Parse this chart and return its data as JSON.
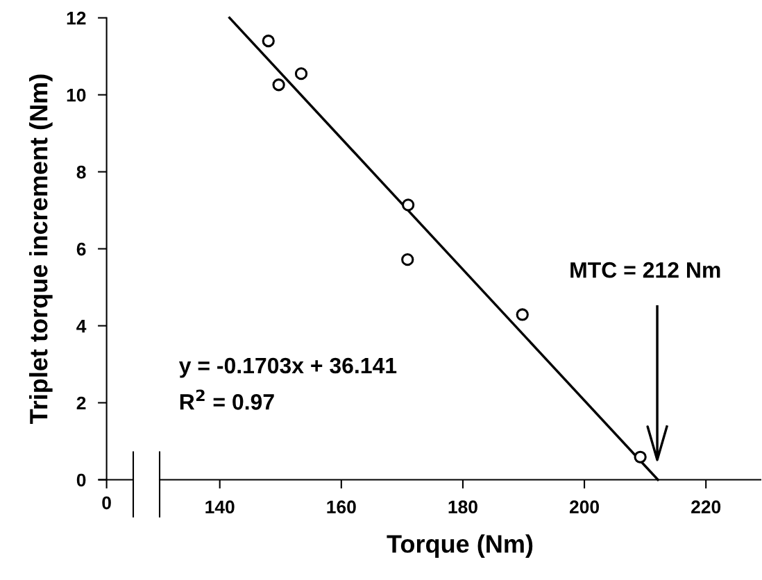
{
  "chart_data": {
    "type": "scatter",
    "xlabel": "Torque (Nm)",
    "ylabel": "Triplet torque increment (Nm)",
    "x": [
      148.0,
      149.7,
      153.4,
      171.0,
      170.9,
      189.8,
      209.2
    ],
    "series": [
      {
        "color": "#000000",
        "marker": "circle",
        "values": [
          11.4,
          10.26,
          10.55,
          7.14,
          5.72,
          4.29,
          0.59
        ]
      },
      {
        "type": "line",
        "color": "#000000",
        "marker": "none",
        "line_style": "solid",
        "x": [
          141.6,
          212.1
        ],
        "values": [
          12.0,
          0.0
        ]
      }
    ],
    "xlim": [
      130.1,
      229
    ],
    "xticks": [
      140,
      160,
      180,
      200,
      220
    ],
    "ylim": [
      0,
      12
    ],
    "yticks": [
      0,
      2,
      4,
      6,
      8,
      10,
      12
    ],
    "annotations": [
      "y = -0.1703x + 36.141",
      "R$^{2}$ = 0.97",
      "MTC = 212 Nm",
      "0"
    ]
  }
}
